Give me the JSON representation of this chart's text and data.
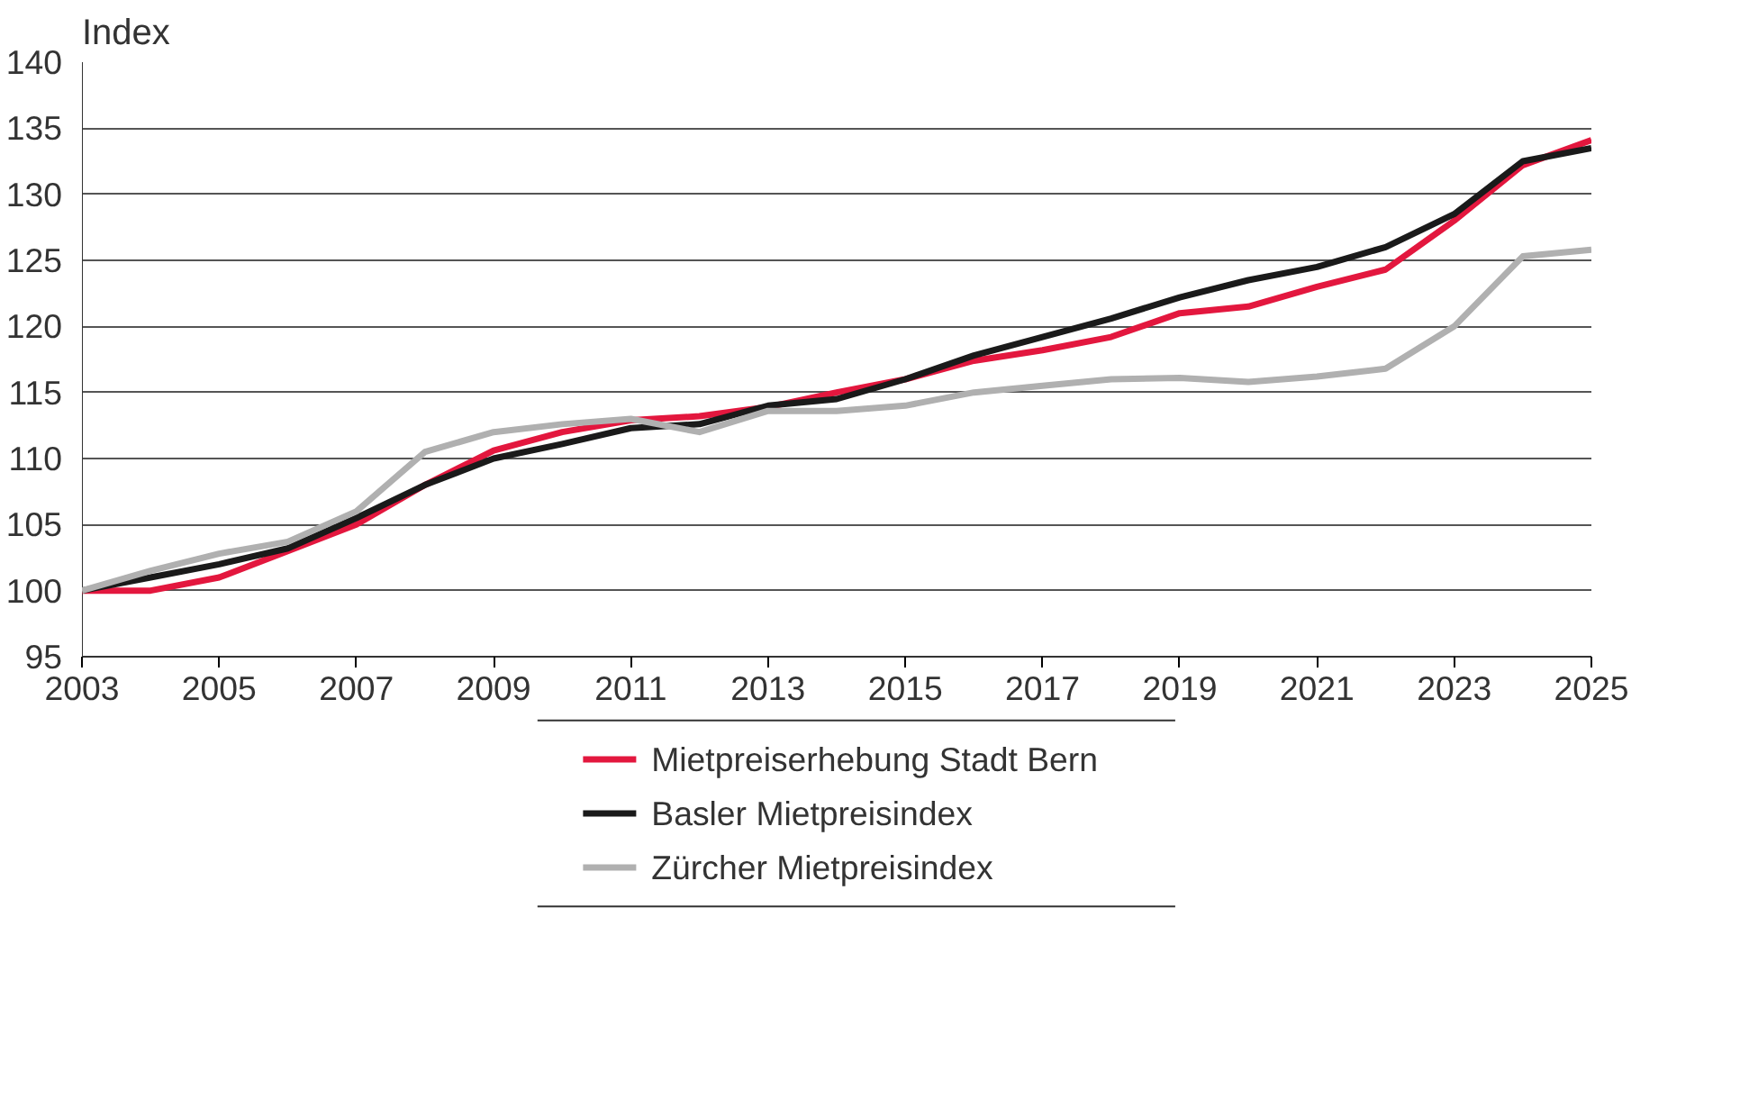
{
  "chart_data": {
    "type": "line",
    "ylabel": "Index",
    "x": [
      2003,
      2004,
      2005,
      2006,
      2007,
      2008,
      2009,
      2010,
      2011,
      2012,
      2013,
      2014,
      2015,
      2016,
      2017,
      2018,
      2019,
      2020,
      2021,
      2022,
      2023,
      2024,
      2025
    ],
    "xlim": [
      2003,
      2025
    ],
    "xticks": [
      2003,
      2005,
      2007,
      2009,
      2011,
      2013,
      2015,
      2017,
      2019,
      2021,
      2023,
      2025
    ],
    "ylim": [
      95,
      140
    ],
    "yticks": [
      95,
      100,
      105,
      110,
      115,
      120,
      125,
      130,
      135,
      140
    ],
    "grid": "y",
    "legend": "bottom",
    "marker": "none",
    "line_style": "solid",
    "series": [
      {
        "name": "Mietpreiserhebung Stadt Bern",
        "color": "#e3173e",
        "values": [
          100,
          100,
          101,
          103,
          105,
          108,
          110.6,
          112,
          112.9,
          113.2,
          113.9,
          115,
          116,
          117.4,
          118.2,
          119.2,
          121,
          121.5,
          123,
          124.3,
          128,
          132.2,
          134.1
        ]
      },
      {
        "name": "Basler Mietpreisindex",
        "color": "#1a1a1a",
        "values": [
          100,
          101,
          102,
          103.2,
          105.5,
          108,
          110,
          111.1,
          112.3,
          112.6,
          114,
          114.5,
          116,
          117.8,
          119.2,
          120.6,
          122.2,
          123.5,
          124.5,
          126,
          128.5,
          132.5,
          133.5
        ]
      },
      {
        "name": "Zürcher Mietpreisindex",
        "color": "#b0b0b0",
        "values": [
          100,
          101.5,
          102.8,
          103.7,
          106,
          110.5,
          112,
          112.6,
          113,
          112,
          113.6,
          113.6,
          114,
          115,
          115.5,
          116,
          116.1,
          115.8,
          116.2,
          116.8,
          120,
          125.3,
          125.8
        ]
      }
    ]
  }
}
